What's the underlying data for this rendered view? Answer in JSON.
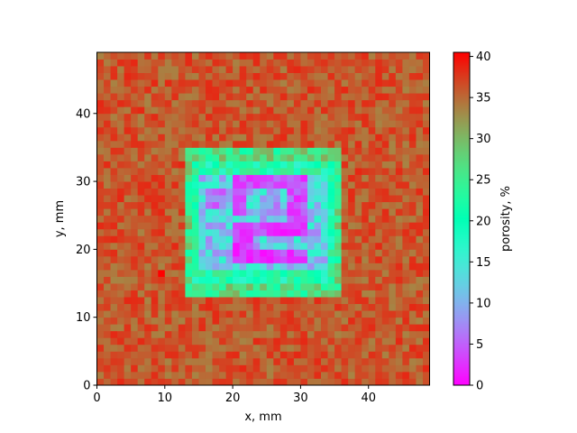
{
  "chart_data": {
    "type": "heatmap",
    "title": "",
    "xlabel": "x, mm",
    "ylabel": "y, mm",
    "xlim": [
      0,
      49
    ],
    "ylim": [
      0,
      49
    ],
    "xticks": [
      0,
      10,
      20,
      30,
      40
    ],
    "yticks": [
      0,
      10,
      20,
      30,
      40
    ],
    "grid": false,
    "colormap": "rainbow",
    "colorbar": {
      "label": "porosity, %",
      "range": [
        0,
        40.5
      ],
      "ticks": [
        0,
        5,
        10,
        15,
        20,
        25,
        30,
        35,
        40
      ]
    },
    "background_porosity": 36,
    "regions": [
      {
        "x": [
          13,
          36
        ],
        "y": [
          13,
          35
        ],
        "value": 26
      },
      {
        "x": [
          14,
          35
        ],
        "y": [
          15,
          33
        ],
        "value": 21
      },
      {
        "x": [
          15,
          34
        ],
        "y": [
          17,
          31
        ],
        "value": 12
      }
    ],
    "low_porosity_patterns": [
      {
        "x": [
          21,
          30
        ],
        "y": [
          29,
          31
        ],
        "value": 4
      },
      {
        "x": [
          20,
          22
        ],
        "y": [
          25,
          31
        ],
        "value": 3
      },
      {
        "x": [
          28,
          31
        ],
        "y": [
          22,
          31
        ],
        "value": 4
      },
      {
        "x": [
          20,
          31
        ],
        "y": [
          22,
          24
        ],
        "value": 3
      },
      {
        "x": [
          20,
          23
        ],
        "y": [
          18,
          23
        ],
        "value": 3
      },
      {
        "x": [
          20,
          31
        ],
        "y": [
          18,
          20
        ],
        "value": 3
      },
      {
        "x": [
          16,
          19
        ],
        "y": [
          26,
          29
        ],
        "value": 6
      },
      {
        "x": [
          24,
          27
        ],
        "y": [
          25,
          28
        ],
        "value": 8
      }
    ],
    "hotspots": [
      {
        "x": 9.5,
        "y": 16.5,
        "value": 40.5
      }
    ]
  }
}
